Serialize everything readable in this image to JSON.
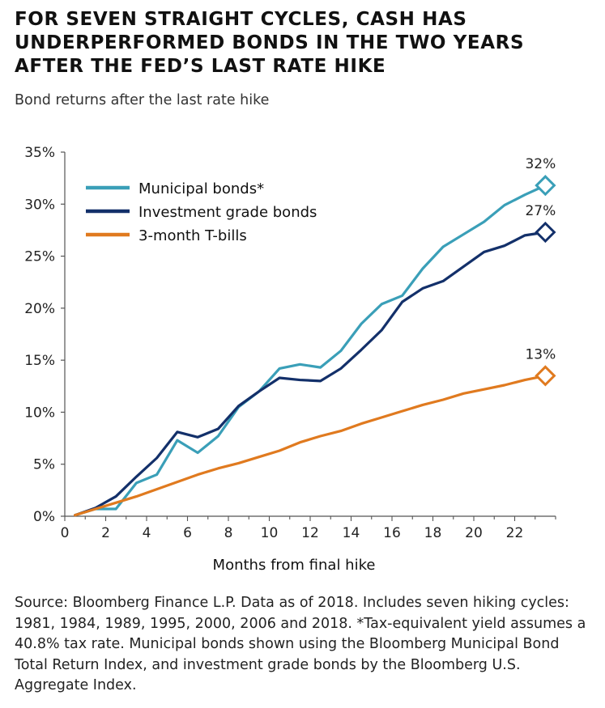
{
  "header": {
    "title": "FOR SEVEN STRAIGHT CYCLES, CASH HAS UNDERPERFORMED BONDS IN THE TWO YEARS AFTER THE FED’S LAST RATE HIKE",
    "subtitle": "Bond returns after the last rate hike"
  },
  "footer": {
    "source": "Source: Bloomberg Finance L.P. Data as of 2018. Includes seven hiking cycles: 1981, 1984, 1989, 1995, 2000, 2006 and 2018. *Tax-equivalent yield assumes a 40.8% tax rate. Municipal bonds shown using the Bloomberg Municipal Bond Total Return Index, and investment grade bonds by the Bloomberg U.S. Aggregate Index."
  },
  "chart_data": {
    "type": "line",
    "title": "",
    "xlabel": "Months from final hike",
    "ylabel": "",
    "xlim": [
      0,
      24
    ],
    "ylim": [
      0,
      35
    ],
    "x_ticks": [
      0,
      2,
      4,
      6,
      8,
      10,
      12,
      14,
      16,
      18,
      20,
      22
    ],
    "y_ticks": [
      0,
      5,
      10,
      15,
      20,
      25,
      30,
      35
    ],
    "y_tick_labels": [
      "0%",
      "5%",
      "10%",
      "15%",
      "20%",
      "25%",
      "30%",
      "35%"
    ],
    "grid": false,
    "legend_position": "top-left",
    "x": [
      0.5,
      1.5,
      2.5,
      3.5,
      4.5,
      5.5,
      6.5,
      7.5,
      8.5,
      9.5,
      10.5,
      11.5,
      12.5,
      13.5,
      14.5,
      15.5,
      16.5,
      17.5,
      18.5,
      19.5,
      20.5,
      21.5,
      22.5,
      23.5
    ],
    "series": [
      {
        "name": "Municipal bonds*",
        "color": "#3a9fb8",
        "values": [
          0.1,
          0.7,
          0.7,
          3.2,
          4.0,
          7.3,
          6.1,
          7.7,
          10.5,
          12.0,
          14.2,
          14.6,
          14.3,
          15.9,
          18.5,
          20.4,
          21.2,
          23.8,
          25.9,
          27.1,
          28.3,
          29.9,
          30.9,
          31.8
        ],
        "end_label": "32%"
      },
      {
        "name": "Investment grade bonds",
        "color": "#13306a",
        "values": [
          0.1,
          0.8,
          1.9,
          3.8,
          5.6,
          8.1,
          7.6,
          8.4,
          10.6,
          12.0,
          13.3,
          13.1,
          13.0,
          14.2,
          16.0,
          17.9,
          20.6,
          21.9,
          22.6,
          24.0,
          25.4,
          26.0,
          27.0,
          27.3
        ],
        "end_label": "27%"
      },
      {
        "name": "3-month T-bills",
        "color": "#e07a1f",
        "values": [
          0.1,
          0.7,
          1.3,
          1.9,
          2.6,
          3.3,
          4.0,
          4.6,
          5.1,
          5.7,
          6.3,
          7.1,
          7.7,
          8.2,
          8.9,
          9.5,
          10.1,
          10.7,
          11.2,
          11.8,
          12.2,
          12.6,
          13.1,
          13.5
        ],
        "end_label": "13%"
      }
    ]
  }
}
